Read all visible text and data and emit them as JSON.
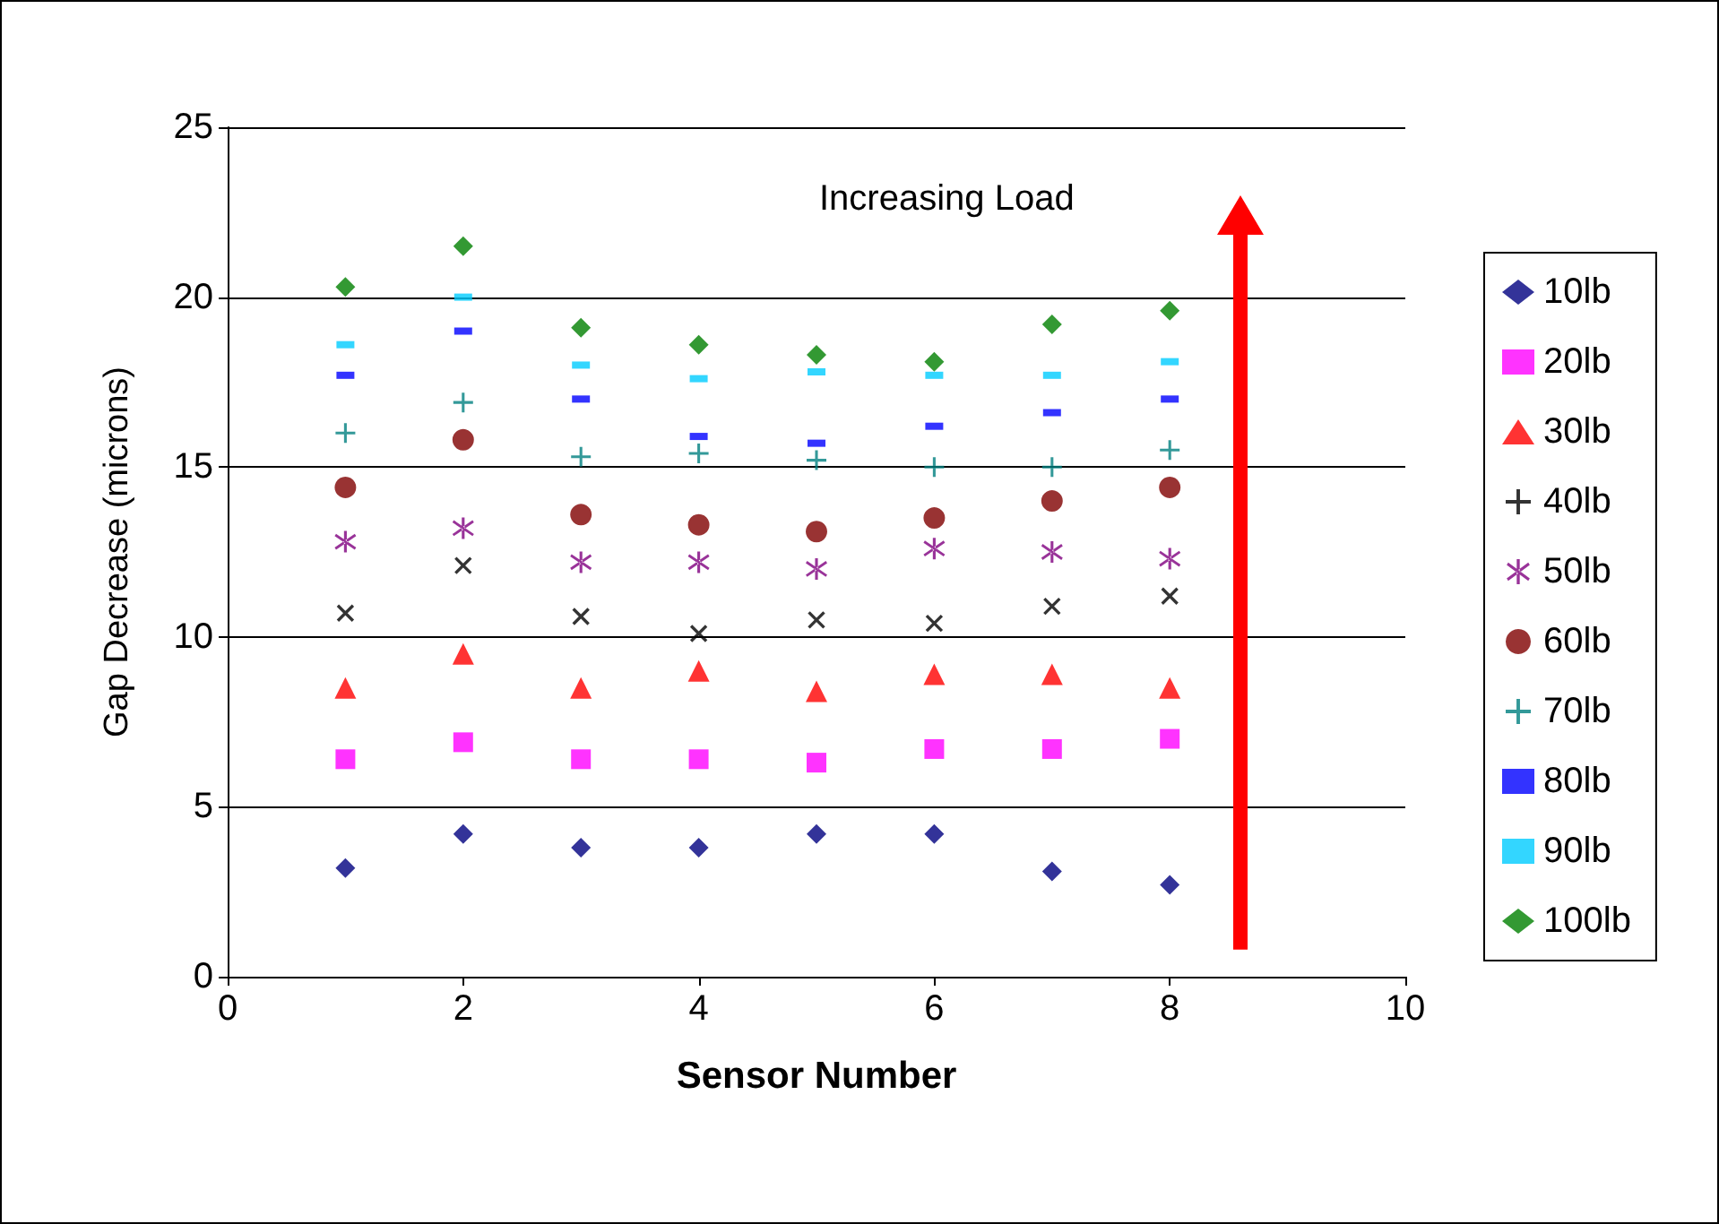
{
  "chart_data": {
    "type": "scatter",
    "xlabel": "Sensor Number",
    "ylabel": "Gap Decrease (microns)",
    "x": [
      1,
      2,
      3,
      4,
      5,
      6,
      7,
      8
    ],
    "xlim": [
      0,
      10
    ],
    "xticks": [
      0,
      2,
      4,
      6,
      8,
      10
    ],
    "ylim": [
      0,
      25
    ],
    "yticks": [
      0,
      5,
      10,
      15,
      20,
      25
    ],
    "grid": "y",
    "legend": "right",
    "annotations": [
      "Increasing Load"
    ],
    "series": [
      {
        "name": "10lb",
        "color": "#000080",
        "marker": "diamond",
        "values": [
          3.2,
          4.2,
          3.8,
          3.8,
          4.2,
          4.2,
          3.1,
          2.7
        ]
      },
      {
        "name": "20lb",
        "color": "#ff00ff",
        "marker": "square",
        "values": [
          6.4,
          6.9,
          6.4,
          6.4,
          6.3,
          6.7,
          6.7,
          7.0
        ]
      },
      {
        "name": "30lb",
        "color": "#ff0000",
        "marker": "triangle",
        "values": [
          8.5,
          9.5,
          8.5,
          9.0,
          8.4,
          8.9,
          8.9,
          8.5
        ]
      },
      {
        "name": "40lb",
        "color": "#000000",
        "marker": "x",
        "values": [
          10.7,
          12.1,
          10.6,
          10.1,
          10.5,
          10.4,
          10.9,
          11.2
        ]
      },
      {
        "name": "50lb",
        "color": "#800080",
        "marker": "cross",
        "values": [
          12.8,
          13.2,
          12.2,
          12.2,
          12.0,
          12.6,
          12.5,
          12.3
        ]
      },
      {
        "name": "60lb",
        "color": "#800000",
        "marker": "circle",
        "values": [
          14.4,
          15.8,
          13.6,
          13.3,
          13.1,
          13.5,
          14.0,
          14.4
        ]
      },
      {
        "name": "70lb",
        "color": "#008080",
        "marker": "plus",
        "values": [
          16.0,
          16.9,
          15.3,
          15.4,
          15.2,
          15.0,
          15.0,
          15.5
        ]
      },
      {
        "name": "80lb",
        "color": "#0000ff",
        "values": [
          17.7,
          19.0,
          17.0,
          15.9,
          15.7,
          16.2,
          16.6,
          17.0
        ]
      },
      {
        "name": "90lb",
        "color": "#00ccff",
        "values": [
          18.6,
          20.0,
          18.0,
          17.6,
          17.8,
          17.7,
          17.7,
          18.1
        ]
      },
      {
        "name": "100lb",
        "color": "#008000",
        "marker": "diamond",
        "values": [
          20.3,
          21.5,
          19.1,
          18.6,
          18.3,
          18.1,
          19.2,
          19.6
        ]
      }
    ]
  }
}
